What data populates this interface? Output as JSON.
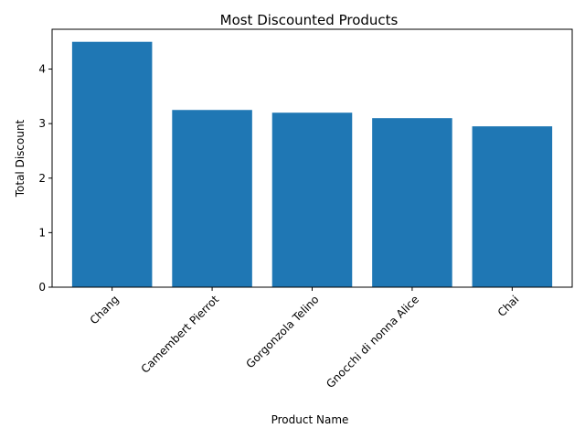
{
  "chart_data": {
    "type": "bar",
    "title": "Most Discounted Products",
    "xlabel": "Product Name",
    "ylabel": "Total Discount",
    "categories": [
      "Chang",
      "Camembert Pierrot",
      "Gorgonzola Telino",
      "Gnocchi di nonna Alice",
      "Chai"
    ],
    "values": [
      4.5,
      3.25,
      3.2,
      3.1,
      2.95
    ],
    "ylim": [
      0,
      4.73
    ],
    "yticks": [
      0,
      1,
      2,
      3,
      4
    ],
    "bar_color": "#1f77b4",
    "grid": false,
    "x_tick_rotation": -45
  }
}
